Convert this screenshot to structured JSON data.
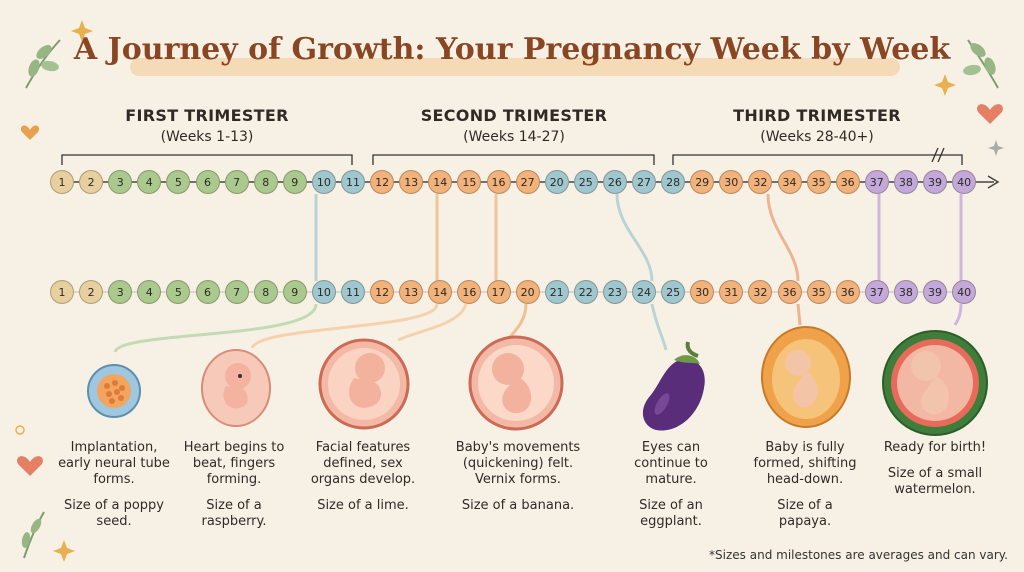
{
  "title": "A Journey of Growth: Your Pregnancy Week by Week",
  "trimesters": [
    {
      "name": "FIRST TRIMESTER",
      "weeks": "(Weeks 1-13)"
    },
    {
      "name": "SECOND TRIMESTER",
      "weeks": "(Weeks 14-27)"
    },
    {
      "name": "THIRD TRIMESTER",
      "weeks": "(Weeks 28-40+)"
    }
  ],
  "timeline_top": [
    "1",
    "2",
    "3",
    "4",
    "5",
    "6",
    "7",
    "8",
    "9",
    "10",
    "11",
    "12",
    "13",
    "14",
    "15",
    "16",
    "27",
    "20",
    "25",
    "26",
    "27",
    "28",
    "29",
    "30",
    "32",
    "34",
    "35",
    "36",
    "37",
    "38",
    "39",
    "40"
  ],
  "timeline_bottom": [
    "1",
    "2",
    "3",
    "4",
    "5",
    "6",
    "7",
    "8",
    "9",
    "10",
    "11",
    "12",
    "13",
    "14",
    "16",
    "17",
    "20",
    "21",
    "22",
    "23",
    "24",
    "25",
    "30",
    "31",
    "32",
    "36",
    "35",
    "36",
    "37",
    "38",
    "39",
    "40"
  ],
  "colors": {
    "title": "#8a4522",
    "first": "#a9c98e",
    "first_light": "#e7cf9f",
    "teal": "#9fc7cf",
    "orange": "#f1b27c",
    "purple": "#c2a9d9",
    "background": "#f7f1e5"
  },
  "milestones": [
    {
      "text": "Implantation, early neural tube forms.",
      "size": "Size of a poppy seed.",
      "icon": "poppy-seed-icon"
    },
    {
      "text": "Heart begins to beat, fingers forming.",
      "size": "Size of a raspberry.",
      "icon": "embryo-icon"
    },
    {
      "text": "Facial features defined, sex organs develop.",
      "size": "Size of a lime.",
      "icon": "fetus-lime-icon"
    },
    {
      "text": "Baby's movements (quickening) felt. Vernix forms.",
      "size": "Size of a banana.",
      "icon": "fetus-banana-icon"
    },
    {
      "text": "Eyes can continue to mature.",
      "size": "Size of an eggplant.",
      "icon": "eggplant-icon"
    },
    {
      "text": "Baby is fully formed, shifting head-down.",
      "size": "Size of a papaya.",
      "icon": "papaya-icon"
    },
    {
      "text": "Ready for birth!",
      "size": "Size of a small watermelon.",
      "icon": "watermelon-icon"
    }
  ],
  "footnote": "*Sizes and milestones are averages and can vary."
}
